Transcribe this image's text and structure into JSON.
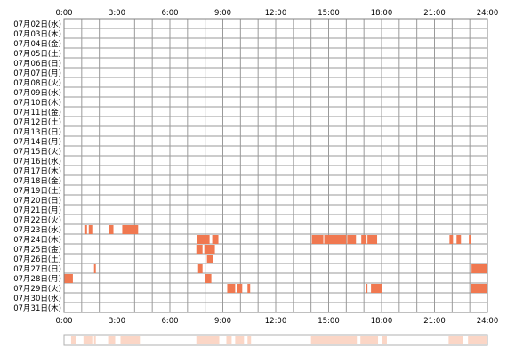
{
  "chart_data": {
    "type": "heatmap",
    "title": "",
    "xlabel": "",
    "ylabel": "",
    "x_tick_labels": [
      "0:00",
      "3:00",
      "6:00",
      "9:00",
      "12:00",
      "15:00",
      "18:00",
      "21:00",
      "24:00"
    ],
    "xlim": [
      0,
      24
    ],
    "grid": true,
    "row_labels": [
      "07月02日(水)",
      "07月03日(木)",
      "07月04日(金)",
      "07月05日(土)",
      "07月06日(日)",
      "07月07日(月)",
      "07月08日(火)",
      "07月09日(水)",
      "07月10日(木)",
      "07月11日(金)",
      "07月12日(土)",
      "07月13日(日)",
      "07月14日(月)",
      "07月15日(火)",
      "07月16日(水)",
      "07月17日(木)",
      "07月18日(金)",
      "07月19日(土)",
      "07月20日(日)",
      "07月21日(月)",
      "07月22日(火)",
      "07月23日(水)",
      "07月24日(木)",
      "07月25日(金)",
      "07月26日(土)",
      "07月27日(日)",
      "07月28日(月)",
      "07月29日(火)",
      "07月30日(水)",
      "07月31日(木)"
    ],
    "activity_color": "#f07850",
    "summary_color": "#fbd6c6",
    "activity": {
      "07月23日(水)": [
        [
          1.15,
          1.3
        ],
        [
          1.4,
          1.6
        ],
        [
          2.55,
          2.8
        ],
        [
          3.3,
          4.2
        ]
      ],
      "07月24日(木)": [
        [
          7.55,
          8.25
        ],
        [
          8.4,
          8.75
        ],
        [
          14.05,
          14.7
        ],
        [
          14.75,
          16.0
        ],
        [
          16.05,
          16.55
        ],
        [
          16.85,
          17.15
        ],
        [
          17.2,
          17.75
        ],
        [
          21.85,
          22.05
        ],
        [
          22.25,
          22.5
        ],
        [
          22.95,
          23.05
        ]
      ],
      "07月25日(金)": [
        [
          7.5,
          7.85
        ],
        [
          7.95,
          8.55
        ]
      ],
      "07月26日(土)": [
        [
          8.1,
          8.45
        ]
      ],
      "07月27日(日)": [
        [
          1.7,
          1.8
        ],
        [
          7.6,
          7.85
        ],
        [
          23.1,
          23.95
        ]
      ],
      "07月28日(月)": [
        [
          0.0,
          0.5
        ],
        [
          8.0,
          8.35
        ]
      ],
      "07月29日(火)": [
        [
          9.25,
          9.7
        ],
        [
          9.8,
          10.1
        ],
        [
          10.4,
          10.55
        ],
        [
          17.1,
          17.2
        ],
        [
          17.4,
          18.05
        ],
        [
          23.05,
          23.95
        ]
      ]
    },
    "summary_bands": [
      [
        0.4,
        0.7
      ],
      [
        1.1,
        1.6
      ],
      [
        1.7,
        1.8
      ],
      [
        2.5,
        2.9
      ],
      [
        3.2,
        4.3
      ],
      [
        7.5,
        8.8
      ],
      [
        9.2,
        9.5
      ],
      [
        9.7,
        10.2
      ],
      [
        10.4,
        10.6
      ],
      [
        14.0,
        16.6
      ],
      [
        16.8,
        17.8
      ],
      [
        18.0,
        18.3
      ],
      [
        21.8,
        22.6
      ],
      [
        22.9,
        23.95
      ]
    ]
  }
}
